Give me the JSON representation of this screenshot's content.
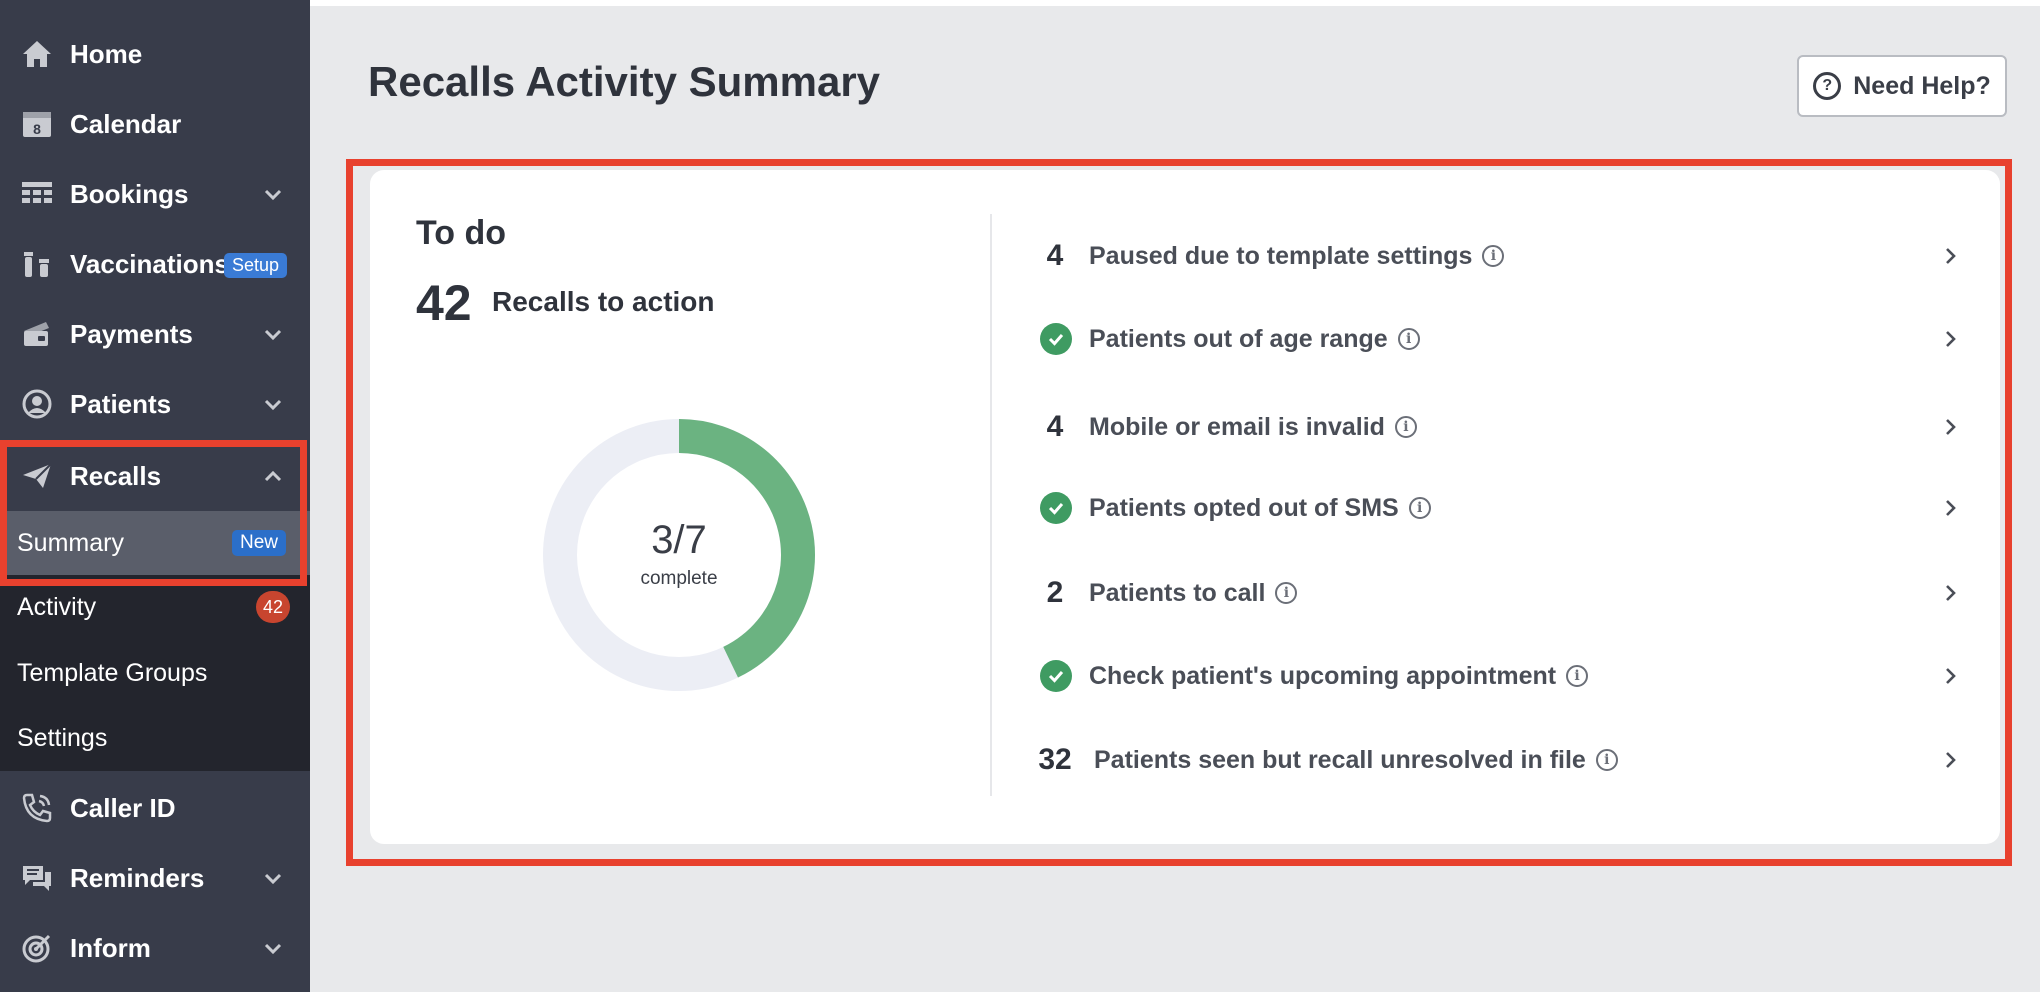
{
  "sidebar": {
    "items": [
      {
        "label": "Home",
        "icon": "home-icon"
      },
      {
        "label": "Calendar",
        "icon": "calendar-icon",
        "calendar_day": "8"
      },
      {
        "label": "Bookings",
        "icon": "grid-icon"
      },
      {
        "label": "Vaccinations",
        "icon": "vials-icon",
        "badge": "Setup"
      },
      {
        "label": "Payments",
        "icon": "payment-card-icon"
      },
      {
        "label": "Patients",
        "icon": "user-circle-icon"
      },
      {
        "label": "Recalls",
        "icon": "paper-plane-icon"
      },
      {
        "label": "Caller ID",
        "icon": "phone-icon"
      },
      {
        "label": "Reminders",
        "icon": "chat-bubbles-icon"
      },
      {
        "label": "Inform",
        "icon": "target-icon"
      }
    ],
    "recalls_submenu": [
      {
        "label": "Summary",
        "badge": "New"
      },
      {
        "label": "Activity",
        "badge": "42"
      },
      {
        "label": "Template Groups"
      },
      {
        "label": "Settings"
      }
    ]
  },
  "main": {
    "title": "Recalls Activity Summary",
    "help_label": "Need Help?",
    "help_icon_text": "?"
  },
  "card": {
    "todo_title": "To do",
    "todo_count": "42",
    "todo_count_label": "Recalls to action",
    "progress": {
      "completed": 3,
      "total": 7,
      "display": "3/7",
      "label": "complete"
    },
    "rows": [
      {
        "count": "4",
        "label": "Paused due to template settings",
        "done": false
      },
      {
        "count": "",
        "label": "Patients out of age range",
        "done": true
      },
      {
        "count": "4",
        "label": "Mobile or email is invalid",
        "done": false
      },
      {
        "count": "",
        "label": "Patients opted out of SMS",
        "done": true
      },
      {
        "count": "2",
        "label": "Patients to call",
        "done": false
      },
      {
        "count": "",
        "label": "Check patient's upcoming appointment",
        "done": true
      },
      {
        "count": "32",
        "label": "Patients seen but recall unresolved in file",
        "done": false
      }
    ],
    "info_glyph": "i"
  },
  "colors": {
    "sidebar_bg": "#383c4a",
    "submenu_bg": "#23252d",
    "accent_green": "#6bb381",
    "check_green": "#3f9b62",
    "highlight_red": "#e8412e",
    "badge_blue": "#2b6fc9"
  }
}
